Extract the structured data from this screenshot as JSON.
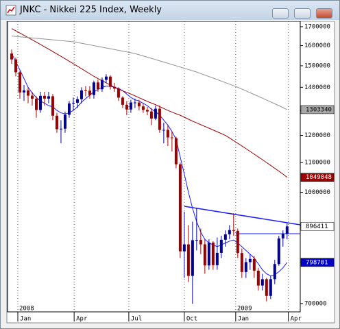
{
  "chart_data": {
    "type": "candlestick",
    "title": "JNKC - Nikkei 225 Index, Weekly",
    "log_scale": true,
    "xlim": [
      -1,
      70.2
    ],
    "ylim": [
      681600,
      1730000
    ],
    "yticks": [
      700000,
      800000,
      900000,
      1000000,
      1100000,
      1200000,
      1300000,
      1400000,
      1500000,
      1600000,
      1700000
    ],
    "xticks": [
      {
        "value": 1.5,
        "label": "Jan"
      },
      {
        "value": 15.2,
        "label": "Apr"
      },
      {
        "value": 28.5,
        "label": "Jul"
      },
      {
        "value": 42,
        "label": "Oct"
      },
      {
        "value": 54.5,
        "label": "Jan"
      },
      {
        "value": 67.3,
        "label": "Apr"
      }
    ],
    "year_labels": [
      {
        "value": 1.5,
        "label": "2008"
      },
      {
        "value": 54.5,
        "label": "2009"
      }
    ],
    "up_color": "#00009c",
    "down_color": "#9c0000",
    "open": [
      1560000,
      1530700,
      1469100,
      1377100,
      1386100,
      1362900,
      1349700,
      1301700,
      1362200,
      1350000,
      1360300,
      1278200,
      1224100,
      1226000,
      1282000,
      1329300,
      1332300,
      1347600,
      1386300,
      1384900,
      1365500,
      1421900,
      1391300,
      1433800,
      1448900,
      1402100,
      1394200,
      1354400,
      1323700,
      1303900,
      1333400,
      1333400,
      1316800,
      1302000,
      1295600,
      1266600,
      1307200,
      1221200,
      1221400,
      1192000,
      1189300,
      1093800,
      827600,
      846200,
      764900,
      857600,
      858300,
      846200,
      791000,
      851200,
      791700,
      823500,
      858800,
      873900,
      885900,
      883600,
      823000,
      774500,
      799400,
      807600,
      777900,
      741600,
      756800,
      717300,
      756900,
      794500,
      862600,
      874900
    ],
    "high": [
      1580000,
      1540000,
      1475000,
      1410000,
      1400000,
      1380000,
      1360000,
      1380000,
      1380000,
      1380000,
      1370000,
      1290000,
      1260000,
      1295000,
      1340000,
      1355000,
      1360000,
      1400000,
      1405000,
      1405000,
      1430000,
      1435000,
      1445000,
      1460000,
      1455000,
      1420000,
      1400000,
      1360000,
      1340000,
      1345000,
      1350000,
      1345000,
      1330000,
      1315000,
      1310000,
      1320000,
      1320000,
      1250000,
      1240000,
      1215000,
      1195000,
      1100000,
      940000,
      900000,
      910000,
      950000,
      890000,
      860000,
      860000,
      855000,
      865000,
      870000,
      885000,
      900000,
      935000,
      890000,
      835000,
      810000,
      820000,
      815000,
      785000,
      770000,
      760000,
      765000,
      805000,
      870000,
      885000,
      905000
    ],
    "low": [
      1510000,
      1450000,
      1350000,
      1340000,
      1330000,
      1320000,
      1270000,
      1290000,
      1320000,
      1330000,
      1260000,
      1210000,
      1170000,
      1210000,
      1270000,
      1300000,
      1310000,
      1330000,
      1360000,
      1350000,
      1350000,
      1380000,
      1380000,
      1420000,
      1390000,
      1380000,
      1340000,
      1310000,
      1280000,
      1290000,
      1310000,
      1300000,
      1290000,
      1280000,
      1240000,
      1260000,
      1210000,
      1170000,
      1160000,
      1140000,
      1080000,
      810000,
      760000,
      750000,
      699400,
      830000,
      820000,
      770000,
      780000,
      780000,
      780000,
      810000,
      840000,
      860000,
      870000,
      810000,
      760000,
      760000,
      780000,
      760000,
      730000,
      730000,
      705000,
      710000,
      745000,
      790000,
      840000,
      860000
    ],
    "close": [
      1530700,
      1469100,
      1377100,
      1386100,
      1362900,
      1349700,
      1301700,
      1362200,
      1350000,
      1360300,
      1278200,
      1224100,
      1226000,
      1282000,
      1329300,
      1332300,
      1347600,
      1386300,
      1384900,
      1365500,
      1421900,
      1391300,
      1433800,
      1448900,
      1402100,
      1394200,
      1354400,
      1323700,
      1303900,
      1333400,
      1333400,
      1316800,
      1302000,
      1295600,
      1266600,
      1307200,
      1221200,
      1221400,
      1192000,
      1189300,
      1093800,
      827600,
      846200,
      764900,
      857600,
      858300,
      846200,
      791000,
      851200,
      791700,
      823500,
      858800,
      873900,
      885900,
      883600,
      823000,
      774500,
      799400,
      807600,
      777900,
      741600,
      756800,
      717300,
      756900,
      794500,
      862600,
      874900,
      896411
    ],
    "series": [
      {
        "color": "#1a1aff",
        "values": [
          1560000,
          1520000,
          1480000,
          1440000,
          1400000,
          1375000,
          1355000,
          1340000,
          1330000,
          1320000,
          1315000,
          1300000,
          1290000,
          1285000,
          1290000,
          1300000,
          1315000,
          1335000,
          1350000,
          1365000,
          1380000,
          1390000,
          1400000,
          1405000,
          1405000,
          1400000,
          1395000,
          1385000,
          1370000,
          1355000,
          1345000,
          1340000,
          1330000,
          1320000,
          1305000,
          1295000,
          1280000,
          1260000,
          1240000,
          1215000,
          1185000,
          1120000,
          1060000,
          1000000,
          950000,
          910000,
          880000,
          860000,
          850000,
          845000,
          840000,
          845000,
          850000,
          855000,
          858000,
          850000,
          840000,
          830000,
          820000,
          810000,
          795000,
          780000,
          770000,
          765000,
          768000,
          775000,
          785000,
          798701
        ]
      },
      {
        "color": "#a00000",
        "values": [
          1690000,
          1678000,
          1666000,
          1654000,
          1642000,
          1630000,
          1618000,
          1606000,
          1594000,
          1582000,
          1570000,
          1558000,
          1546000,
          1534000,
          1522000,
          1510000,
          1498000,
          1486000,
          1474000,
          1462000,
          1450000,
          1440000,
          1430000,
          1420000,
          1410000,
          1400000,
          1392000,
          1384000,
          1377000,
          1370000,
          1362000,
          1354000,
          1346000,
          1338000,
          1331000,
          1324000,
          1316000,
          1308000,
          1300000,
          1293000,
          1286000,
          1280000,
          1272000,
          1264000,
          1256000,
          1249000,
          1242000,
          1235000,
          1228000,
          1221000,
          1214000,
          1207000,
          1200000,
          1190000,
          1180000,
          1170000,
          1160000,
          1150000,
          1140000,
          1130000,
          1120000,
          1110000,
          1100000,
          1090000,
          1080000,
          1070000,
          1060000,
          1049048
        ]
      },
      {
        "color": "#909090",
        "values": [
          1650000,
          1648000,
          1646000,
          1644000,
          1642000,
          1640000,
          1638000,
          1636000,
          1634000,
          1632000,
          1630000,
          1628000,
          1626000,
          1624000,
          1622000,
          1620000,
          1616000,
          1612000,
          1608000,
          1604000,
          1600000,
          1596000,
          1592000,
          1588000,
          1584000,
          1580000,
          1576000,
          1572000,
          1568000,
          1564000,
          1560000,
          1554000,
          1548000,
          1542000,
          1536000,
          1530000,
          1524000,
          1518000,
          1512000,
          1506000,
          1500000,
          1494000,
          1488000,
          1482000,
          1476000,
          1470000,
          1463000,
          1456000,
          1449000,
          1442000,
          1435000,
          1428000,
          1421000,
          1414000,
          1407000,
          1400000,
          1392000,
          1384000,
          1376000,
          1368000,
          1360000,
          1352000,
          1344000,
          1336000,
          1328000,
          1320000,
          1312000,
          1303340
        ]
      }
    ],
    "price_tags": [
      {
        "value": 1303340,
        "bg": "#a8a8a8",
        "fg": "#000000"
      },
      {
        "value": 1049048,
        "bg": "#a00000",
        "fg": "#ffffff"
      },
      {
        "value": 896411,
        "bg": "#ffffff",
        "fg": "#000000"
      },
      {
        "value": 798701,
        "bg": "#0000c8",
        "fg": "#ffffff"
      }
    ]
  }
}
